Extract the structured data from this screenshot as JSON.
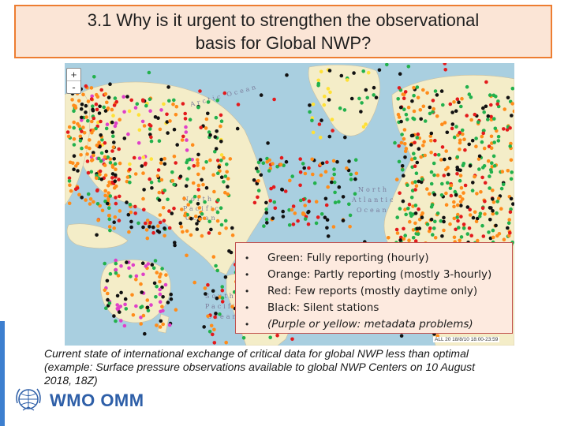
{
  "slide": {
    "title_line1": "3.1 Why is it urgent to strengthen the observational",
    "title_line2": "basis for Global NWP?"
  },
  "map": {
    "zoom_in": "+",
    "zoom_out": "-",
    "ocean_labels": {
      "arctic": "Arctic Ocean",
      "north_pacific_1": "North",
      "north_pacific_2": "Pacific",
      "north_pacific_3": "Ocean",
      "north_atlantic_1": "North",
      "north_atlantic_2": "Atlantic",
      "north_atlantic_3": "Ocean",
      "south_pacific_1": "South",
      "south_pacific_2": "Pacific",
      "south_pacific_3": "Ocean"
    },
    "timestamp": "ALL 20 18/8/10 18:00-23:59",
    "colors": {
      "ocean": "#a9cfe0",
      "land": "#f4edc8",
      "green": "#22b14c",
      "orange": "#ff8c1a",
      "red": "#e31a1c",
      "black": "#111111",
      "purple": "#e040c8",
      "yellow": "#ffe135"
    }
  },
  "legend": {
    "bullet": "•",
    "items": [
      {
        "text": "Green: Fully reporting (hourly)"
      },
      {
        "text": "Orange: Partly reporting (mostly 3-hourly)"
      },
      {
        "text": "Red: Few reports (mostly daytime only)"
      },
      {
        "text": "Black: Silent stations"
      },
      {
        "text": "(Purple or yellow: metadata problems)"
      }
    ]
  },
  "caption": {
    "line1": "Current state of international exchange of critical data for global NWP less than optimal",
    "line2": "(example: Surface pressure observations available to global NWP Centers on 10 August",
    "line3": "2018, 18Z)"
  },
  "footer": {
    "logo_icon": "wmo-emblem-icon",
    "org_name": "WMO OMM"
  }
}
